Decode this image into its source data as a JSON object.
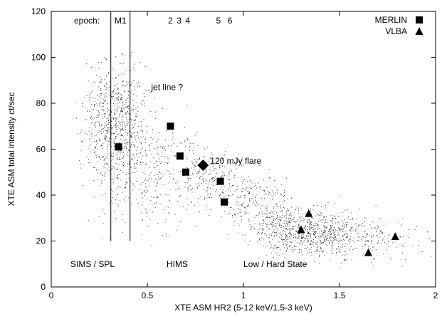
{
  "chart_data": {
    "type": "scatter",
    "title": "",
    "xlabel": "XTE ASM HR2 (5-12 keV/1.5-3 keV)",
    "ylabel": "XTE ASM total intensity ct/sec",
    "xlim": [
      0,
      2
    ],
    "ylim": [
      0,
      120
    ],
    "x_ticks": [
      0,
      0.5,
      1,
      1.5,
      2
    ],
    "x_tick_labels": [
      "0",
      "0.5",
      "1",
      "1.5",
      "2"
    ],
    "y_ticks": [
      0,
      20,
      40,
      60,
      80,
      100,
      120
    ],
    "y_tick_labels": [
      "0",
      "20",
      "40",
      "60",
      "80",
      "100",
      "120"
    ],
    "grid": false,
    "legend_position": "top-right",
    "series": [
      {
        "name": "MERLIN",
        "marker": "square",
        "x": [
          0.35,
          0.62,
          0.67,
          0.7,
          0.88,
          0.9
        ],
        "y": [
          61,
          70,
          57,
          50,
          46,
          37
        ]
      },
      {
        "name": "VLBA",
        "marker": "triangle",
        "x": [
          1.3,
          1.34,
          1.65,
          1.79
        ],
        "y": [
          25,
          32,
          15,
          22
        ]
      }
    ],
    "flare": {
      "x": 0.79,
      "y": 53,
      "marker": "diamond",
      "label": "120 mJy flare"
    },
    "vertical_lines": [
      {
        "x": 0.31,
        "y_from": 20,
        "y_to": 120
      },
      {
        "x": 0.41,
        "y_from": 20,
        "y_to": 120
      }
    ],
    "epoch_labels": {
      "prefix": "epoch:",
      "items": [
        {
          "text": "M1",
          "x": 0.36
        },
        {
          "text": "2",
          "x": 0.62
        },
        {
          "text": "3",
          "x": 0.665
        },
        {
          "text": "4",
          "x": 0.71
        },
        {
          "text": "5",
          "x": 0.87
        },
        {
          "text": "6",
          "x": 0.93
        }
      ]
    },
    "annotations": [
      {
        "text": "jet line ?",
        "x": 0.52,
        "y": 87
      },
      {
        "text": "SIMS / SPL",
        "x": 0.1,
        "y": 10
      },
      {
        "text": "HIMS",
        "x": 0.6,
        "y": 10
      },
      {
        "text": "Low / Hard State",
        "x": 1.0,
        "y": 10
      }
    ],
    "background_points_color": "#000000"
  }
}
